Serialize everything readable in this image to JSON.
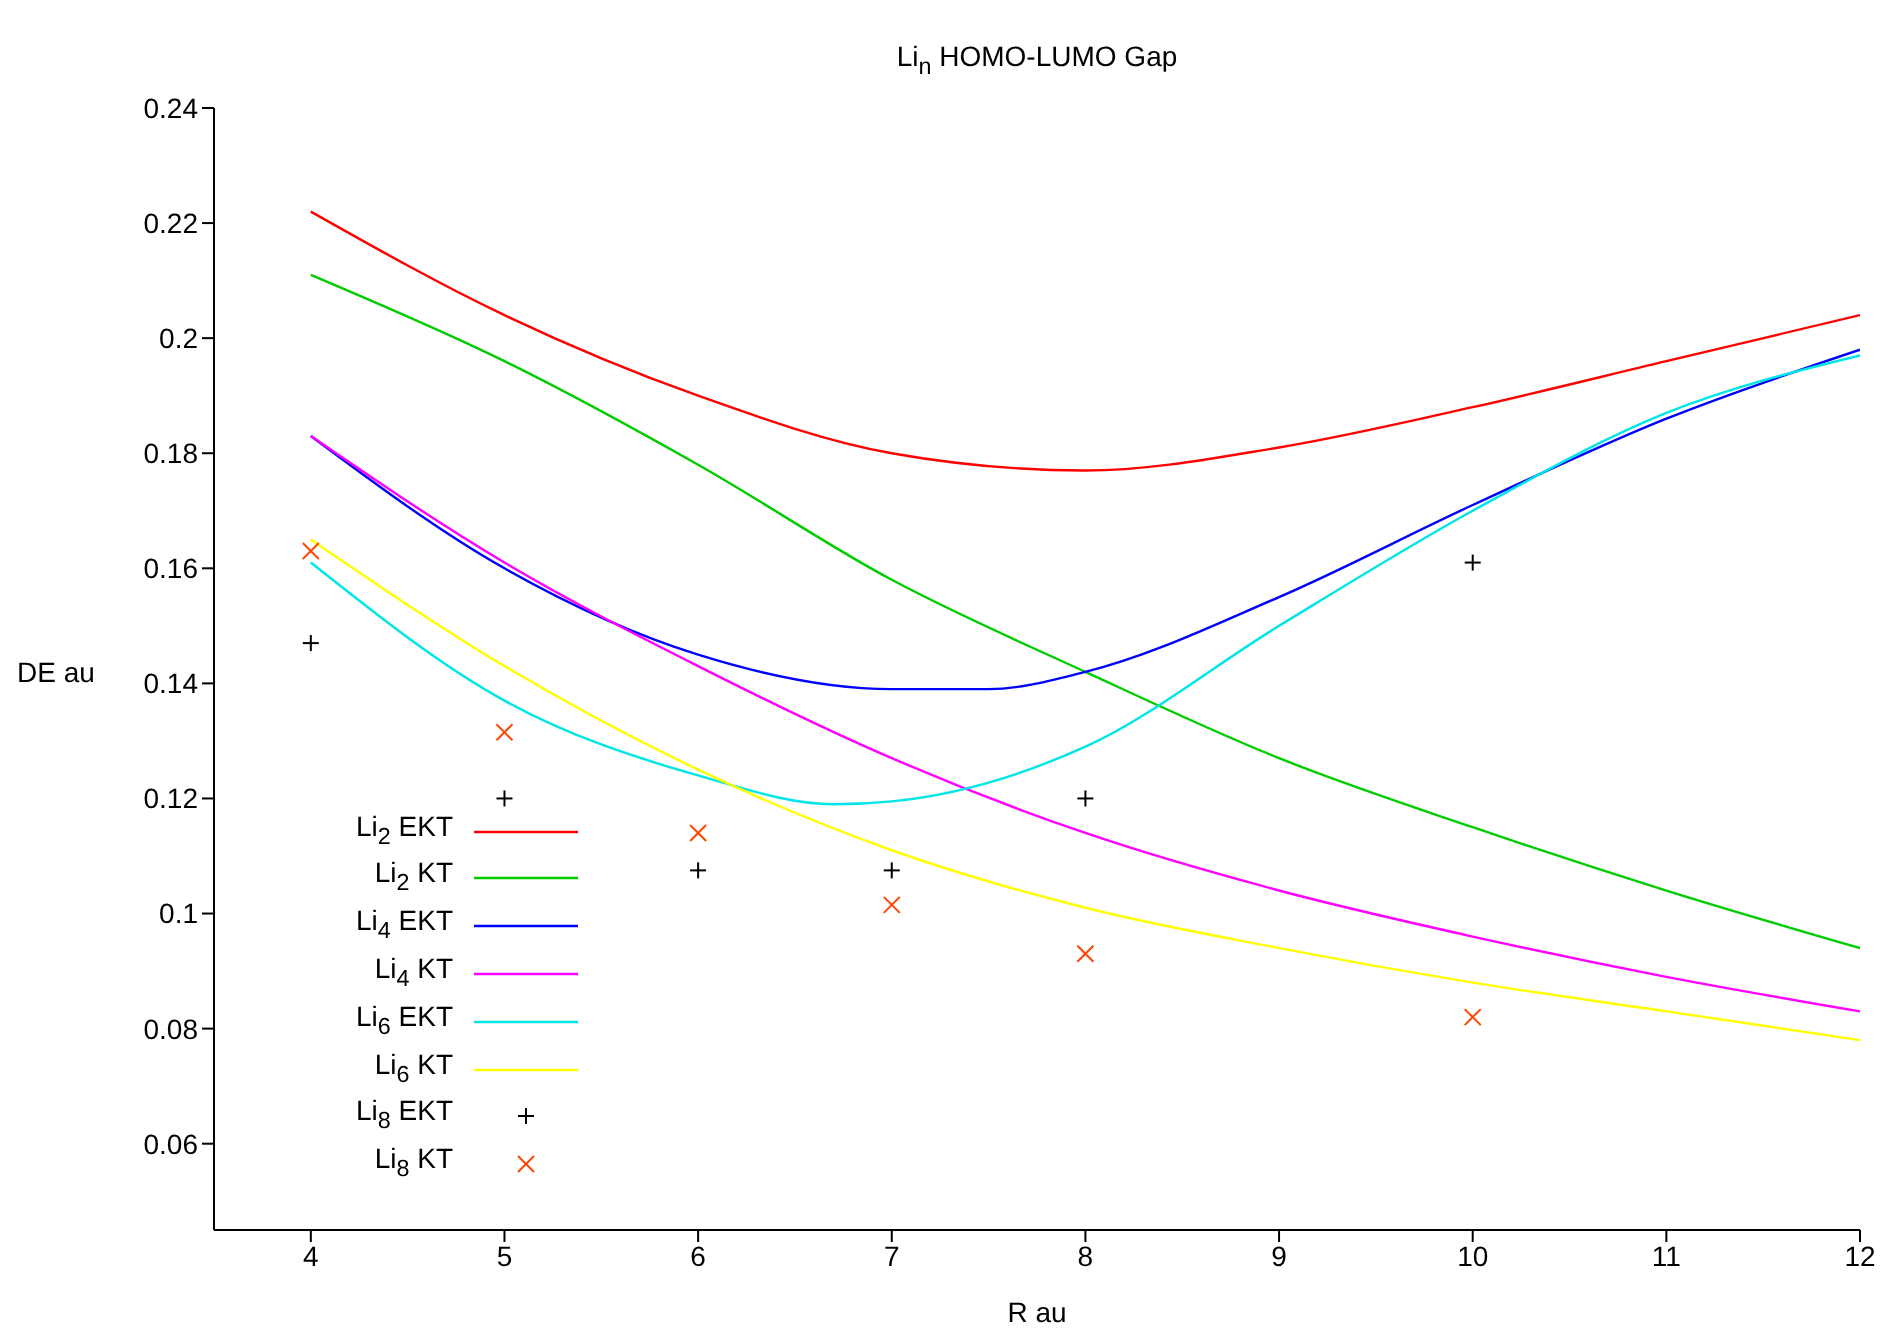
{
  "chart_data": {
    "type": "line",
    "title": "Li$_{n}$ HOMO-LUMO Gap",
    "xlabel": "R au",
    "ylabel": "DE au",
    "xlim": [
      3.5,
      12
    ],
    "ylim": [
      0.045,
      0.24
    ],
    "xticks": [
      4,
      5,
      6,
      7,
      8,
      9,
      10,
      11,
      12
    ],
    "yticks": [
      0.06,
      0.08,
      0.1,
      0.12,
      0.14,
      0.16,
      0.18,
      0.2,
      0.22,
      0.24
    ],
    "grid": false,
    "legend": "bottom left",
    "marker": "none",
    "series": [
      {
        "name": "Li$_{2}$ EKT",
        "color": "#ff0000",
        "x": [
          4,
          5,
          6,
          7,
          8,
          9,
          10,
          11,
          12
        ],
        "values": [
          0.222,
          0.204,
          0.19,
          0.18,
          0.177,
          0.181,
          0.188,
          0.196,
          0.204
        ]
      },
      {
        "name": "Li$_{2}$ KT",
        "color": "#00cc00",
        "x": [
          4,
          5,
          6,
          7,
          8,
          9,
          10,
          11,
          12
        ],
        "values": [
          0.211,
          0.196,
          0.178,
          0.158,
          0.142,
          0.127,
          0.115,
          0.104,
          0.094
        ]
      },
      {
        "name": "Li$_{4}$ EKT",
        "color": "#0000ff",
        "x": [
          4,
          5,
          6,
          7,
          7.5,
          8,
          9,
          10,
          11,
          12
        ],
        "values": [
          0.183,
          0.16,
          0.145,
          0.139,
          0.139,
          0.142,
          0.155,
          0.171,
          0.186,
          0.198
        ]
      },
      {
        "name": "Li$_{4}$ KT",
        "color": "#ff00ff",
        "x": [
          4,
          5,
          6,
          7,
          8,
          9,
          10,
          11,
          12
        ],
        "values": [
          0.183,
          0.161,
          0.143,
          0.127,
          0.114,
          0.104,
          0.096,
          0.089,
          0.083
        ]
      },
      {
        "name": "Li$_{6}$ EKT",
        "color": "#00e5e5",
        "x": [
          4,
          5,
          6,
          6.7,
          7,
          8,
          9,
          10,
          11,
          12
        ],
        "values": [
          0.161,
          0.137,
          0.124,
          0.119,
          0.1195,
          0.129,
          0.15,
          0.17,
          0.187,
          0.197
        ]
      },
      {
        "name": "Li$_{6}$ KT",
        "color": "#ffff00",
        "x": [
          4,
          5,
          6,
          7,
          8,
          9,
          10,
          11,
          12
        ],
        "values": [
          0.165,
          0.143,
          0.125,
          0.111,
          0.101,
          0.094,
          0.088,
          0.083,
          0.078
        ]
      },
      {
        "name": "Li$_{8}$ EKT",
        "type": "scatter",
        "marker": "plus",
        "color": "#000000",
        "x": [
          4,
          5,
          6,
          7,
          8,
          10
        ],
        "values": [
          0.147,
          0.12,
          0.1075,
          0.1075,
          0.12,
          0.161
        ]
      },
      {
        "name": "Li$_{8}$ KT",
        "type": "scatter",
        "marker": "cross",
        "color": "#ff4500",
        "x": [
          4,
          5,
          6,
          7,
          8,
          10
        ],
        "values": [
          0.163,
          0.1315,
          0.114,
          0.1015,
          0.093,
          0.082
        ]
      }
    ]
  }
}
